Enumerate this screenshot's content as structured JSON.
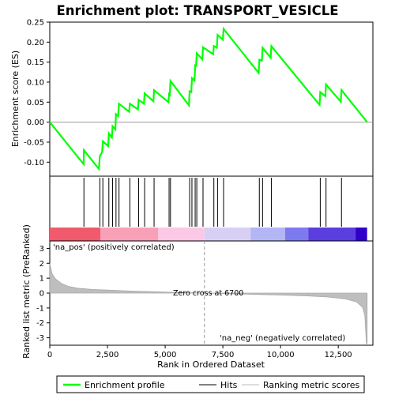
{
  "chart_data": {
    "type": "line",
    "title": "Enrichment plot: TRANSPORT_VESICLE",
    "xlabel": "Rank in Ordered Dataset",
    "ylabel_top": "Enrichment score (ES)",
    "ylabel_bottom": "Ranked list metric (PreRanked)",
    "x_range": [
      0,
      14000
    ],
    "es_ylim": [
      -0.135,
      0.25
    ],
    "metric_ylim": [
      -3.5,
      3.5
    ],
    "x_ticks": [
      "0",
      "2,500",
      "5,000",
      "7,500",
      "10,000",
      "12,500"
    ],
    "x_tick_values": [
      0,
      2500,
      5000,
      7500,
      10000,
      12500
    ],
    "es_y_ticks": [
      "-0.10",
      "-0.05",
      "0.00",
      "0.05",
      "0.10",
      "0.15",
      "0.20",
      "0.25"
    ],
    "es_y_tick_values": [
      -0.1,
      -0.05,
      0.0,
      0.05,
      0.1,
      0.15,
      0.2,
      0.25
    ],
    "metric_y_ticks": [
      "-3",
      "-2",
      "-1",
      "0",
      "1",
      "2",
      "3"
    ],
    "metric_y_tick_values": [
      -3,
      -2,
      -1,
      0,
      1,
      2,
      3
    ],
    "enrichment_points": [
      [
        0,
        0.0
      ],
      [
        1470,
        -0.105
      ],
      [
        1480,
        -0.07
      ],
      [
        2130,
        -0.117
      ],
      [
        2170,
        -0.085
      ],
      [
        2270,
        -0.075
      ],
      [
        2300,
        -0.048
      ],
      [
        2530,
        -0.06
      ],
      [
        2560,
        -0.028
      ],
      [
        2690,
        -0.038
      ],
      [
        2720,
        -0.01
      ],
      [
        2840,
        -0.018
      ],
      [
        2870,
        0.02
      ],
      [
        2960,
        0.015
      ],
      [
        3000,
        0.046
      ],
      [
        3440,
        0.026
      ],
      [
        3470,
        0.046
      ],
      [
        3820,
        0.032
      ],
      [
        3850,
        0.056
      ],
      [
        4080,
        0.046
      ],
      [
        4110,
        0.072
      ],
      [
        4490,
        0.052
      ],
      [
        4520,
        0.08
      ],
      [
        5140,
        0.05
      ],
      [
        5170,
        0.07
      ],
      [
        5200,
        0.068
      ],
      [
        5230,
        0.103
      ],
      [
        6030,
        0.042
      ],
      [
        6060,
        0.077
      ],
      [
        6130,
        0.075
      ],
      [
        6160,
        0.11
      ],
      [
        6270,
        0.104
      ],
      [
        6300,
        0.142
      ],
      [
        6340,
        0.141
      ],
      [
        6370,
        0.172
      ],
      [
        6610,
        0.157
      ],
      [
        6640,
        0.187
      ],
      [
        7080,
        0.17
      ],
      [
        7110,
        0.19
      ],
      [
        7240,
        0.186
      ],
      [
        7270,
        0.218
      ],
      [
        7500,
        0.206
      ],
      [
        7530,
        0.233
      ],
      [
        9050,
        0.123
      ],
      [
        9080,
        0.156
      ],
      [
        9190,
        0.154
      ],
      [
        9220,
        0.186
      ],
      [
        9570,
        0.161
      ],
      [
        9600,
        0.19
      ],
      [
        11690,
        0.043
      ],
      [
        11720,
        0.075
      ],
      [
        11940,
        0.065
      ],
      [
        11970,
        0.094
      ],
      [
        12610,
        0.051
      ],
      [
        12640,
        0.08
      ],
      [
        13750,
        0.0
      ]
    ],
    "hit_ranks": [
      1480,
      2170,
      2300,
      2560,
      2720,
      2870,
      3000,
      3470,
      3850,
      4110,
      4520,
      5170,
      5230,
      6060,
      6160,
      6300,
      6370,
      6640,
      7110,
      7270,
      7530,
      9080,
      9220,
      9600,
      11720,
      11970,
      12640
    ],
    "metric_profile": [
      [
        0,
        2.0
      ],
      [
        100,
        1.3
      ],
      [
        250,
        0.95
      ],
      [
        500,
        0.65
      ],
      [
        800,
        0.45
      ],
      [
        1200,
        0.33
      ],
      [
        1800,
        0.25
      ],
      [
        2500,
        0.2
      ],
      [
        3500,
        0.14
      ],
      [
        4500,
        0.09
      ],
      [
        5500,
        0.05
      ],
      [
        6700,
        0.0
      ],
      [
        8000,
        -0.05
      ],
      [
        9000,
        -0.09
      ],
      [
        10000,
        -0.13
      ],
      [
        11000,
        -0.18
      ],
      [
        12000,
        -0.26
      ],
      [
        12800,
        -0.38
      ],
      [
        13300,
        -0.6
      ],
      [
        13550,
        -0.95
      ],
      [
        13650,
        -1.5
      ],
      [
        13720,
        -3.4
      ],
      [
        13750,
        -3.4
      ]
    ],
    "zero_cross": 6700,
    "zero_cross_label": "Zero cross at 6700",
    "pos_label": "'na_pos' (positively correlated)",
    "neg_label": "'na_neg' (negatively correlated)",
    "legend": {
      "items": [
        {
          "label": "Enrichment profile",
          "color": "#00ff00"
        },
        {
          "label": "Hits",
          "color": "#000000"
        },
        {
          "label": "Ranking metric scores",
          "color": "#bebebe"
        }
      ]
    },
    "colors": {
      "es_line": "#00ff00",
      "metric_fill": "#bebebe",
      "pos_text": "#cc0000",
      "neg_text": "#0000cc",
      "bar_segments": [
        "#ef5b6d",
        "#f8a0b8",
        "#fbc8e6",
        "#d8d0f4",
        "#b2b6f4",
        "#7d7af0",
        "#5a3ee0",
        "#2f00c8"
      ]
    }
  }
}
